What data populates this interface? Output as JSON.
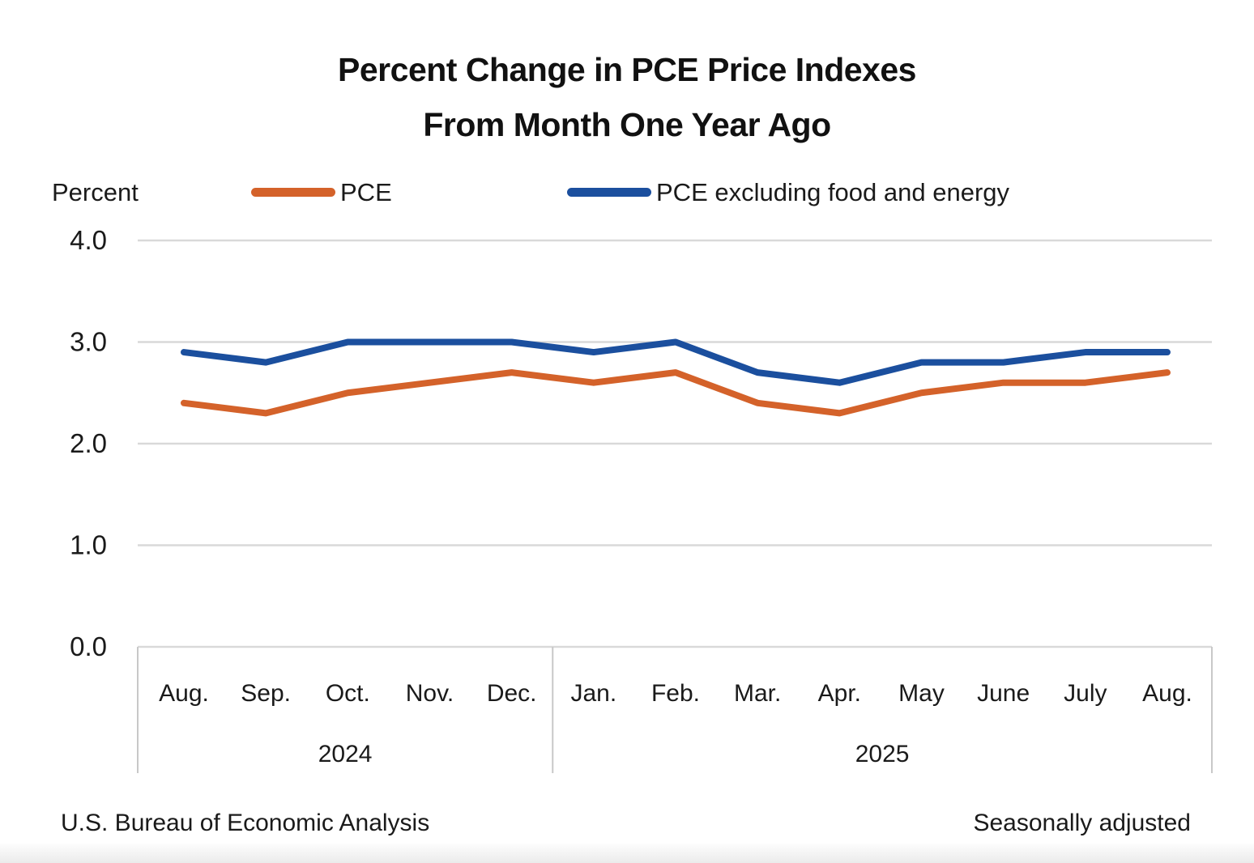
{
  "title": {
    "line1": "Percent Change in PCE Price Indexes",
    "line2": "From Month One Year Ago"
  },
  "footer": {
    "left": "U.S. Bureau of Economic Analysis",
    "right": "Seasonally adjusted"
  },
  "colors": {
    "pce_orange": "#D4622A",
    "core_blue": "#1B4F9E",
    "gridline": "#D9D9D9",
    "axis_line": "#C8C8C8"
  },
  "chart_data": {
    "type": "line",
    "title": "Percent Change in PCE Price Indexes From Month One Year Ago",
    "ylabel": "Percent",
    "xlabel": "",
    "x": [
      "Aug.",
      "Sep.",
      "Oct.",
      "Nov.",
      "Dec.",
      "Jan.",
      "Feb.",
      "Mar.",
      "Apr.",
      "May",
      "June",
      "July",
      "Aug."
    ],
    "x_groups": [
      {
        "label": "2024",
        "from": 0,
        "to": 4
      },
      {
        "label": "2025",
        "from": 5,
        "to": 12
      }
    ],
    "series": [
      {
        "key": "pce",
        "name": "PCE",
        "color": "#D4622A",
        "values": [
          2.4,
          2.3,
          2.5,
          2.6,
          2.7,
          2.6,
          2.7,
          2.4,
          2.3,
          2.5,
          2.6,
          2.6,
          2.7
        ]
      },
      {
        "key": "core-pce",
        "name": "PCE excluding food and energy",
        "color": "#1B4F9E",
        "values": [
          2.9,
          2.8,
          3.0,
          3.0,
          3.0,
          2.9,
          3.0,
          2.7,
          2.6,
          2.8,
          2.8,
          2.9,
          2.9
        ]
      }
    ],
    "yticks": [
      0.0,
      1.0,
      2.0,
      3.0,
      4.0
    ],
    "ytick_labels": [
      "0.0",
      "1.0",
      "2.0",
      "3.0",
      "4.0"
    ],
    "ylim": [
      0.0,
      4.0
    ],
    "grid": "horizontal",
    "legend_position": "top",
    "seasonal_note": "Seasonally adjusted",
    "source": "U.S. Bureau of Economic Analysis"
  }
}
